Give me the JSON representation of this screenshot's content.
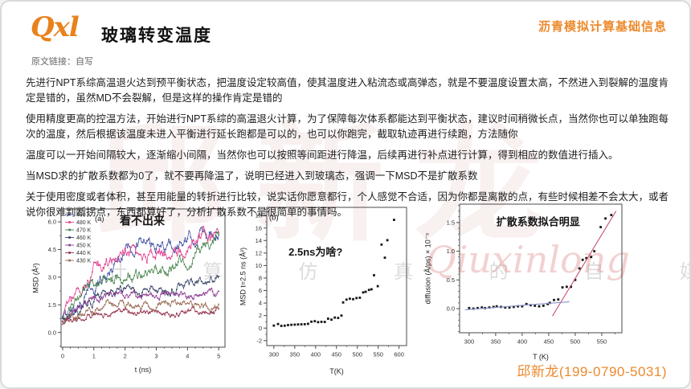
{
  "header": {
    "logo": "Qxl",
    "title": "玻璃转变温度",
    "topright": "沥青模拟计算基础信息",
    "source_line": "原文链接：自写"
  },
  "paragraphs": [
    "先进行NPT系综高温退火达到预平衡状态，把温度设定较高值，使其温度进入粘流态或高弹态，就是不要温度设置太高，不然进入到裂解的温度肯定是错的，虽然MD不会裂解，但是这样的操作肯定是错的",
    "使用精度更高的控温方法，开始进行NPT系综的高温退火计算，为了保障每次体系都能达到平衡状态，建议时间稍微长点，当然你也可以单独跑每次的温度，然后根据该温度未进入平衡进行延长跑都是可以的，也可以你跑完，截取轨迹再进行续跑，方法随你",
    "温度可以一开始间隔较大，逐渐缩小间隔，当然你也可以按照等间距进行降温，后续再进行补点进行计算，得到相应的数值进行插入。",
    "当MSD求的扩散系数都为0了，就不要再降温了，说明已经进入到玻璃态，强调一下MSD不是扩散系数",
    "关于使用密度或者体积，甚至用能量的转折进行比较，说实话你愿意都行，个人感觉不合适，因为你都是离散的点，有些时候相差不会太大，或者说你很难判断拐点，东西都算好了，分析扩散系数不是很简单的事情吗。"
  ],
  "watermark": {
    "big": "邱新龙",
    "row": "计 算 仿 真 的 自 媒 体",
    "script": "Qiuxinlong"
  },
  "footer": {
    "contact": "邱新龙(199-0790-5031)"
  },
  "colors": {
    "accent_orange": "#ED8A2D",
    "logo_orange": "#E8821C",
    "axis": "#4a4a4a",
    "point_black": "#161616",
    "fit_red": "#C8506E",
    "fit_blue": "#8891C8"
  },
  "chart_data": [
    {
      "type": "line",
      "panel_label": "(a)",
      "panel_xy": [
        1.18,
        6.05
      ],
      "annotation": "看不出来",
      "annotation_xy": [
        2.55,
        5.85
      ],
      "annotation_size": 14,
      "xlabel": "t (ns)",
      "ylabel": "MSD (Å²)",
      "xlim": [
        -0.05,
        5.2
      ],
      "ylim": [
        -0.8,
        6.7
      ],
      "xticks": [
        0,
        1,
        2,
        3,
        4,
        5
      ],
      "xtick_labels": [
        "0",
        "1",
        "2",
        "3",
        "4",
        "5"
      ],
      "yticks": [
        0,
        1.5,
        3,
        4.5,
        6
      ],
      "ytick_labels": [
        "0.0",
        "1.5",
        "3.0",
        "4.5",
        "6.0"
      ],
      "legend_position": "top-left",
      "x_anchor": [
        0,
        0.5,
        1,
        1.5,
        2,
        2.5,
        3,
        3.5,
        4,
        4.5,
        5
      ],
      "series": [
        {
          "name": "490 K",
          "color": "#3E4C9E",
          "noise": 0.5,
          "values": [
            0.7,
            1.5,
            2.5,
            3.2,
            4.6,
            4.9,
            4.5,
            4.7,
            4.9,
            5.4,
            5.5
          ]
        },
        {
          "name": "480 K",
          "color": "#E23A8C",
          "noise": 0.55,
          "values": [
            0.7,
            2.2,
            3.3,
            4.0,
            4.6,
            4.1,
            4.4,
            3.9,
            4.6,
            5.1,
            5.1
          ]
        },
        {
          "name": "470 K",
          "color": "#44804A",
          "noise": 0.45,
          "values": [
            0.6,
            1.6,
            2.8,
            3.0,
            2.9,
            3.1,
            3.2,
            3.5,
            4.0,
            4.6,
            5.2
          ]
        },
        {
          "name": "460 K",
          "color": "#333F63",
          "noise": 0.35,
          "values": [
            0.6,
            1.1,
            1.7,
            2.2,
            2.3,
            2.2,
            2.3,
            2.4,
            2.5,
            2.9,
            3.0
          ]
        },
        {
          "name": "450 K",
          "color": "#8C3A90",
          "noise": 0.3,
          "values": [
            0.6,
            1.3,
            1.8,
            2.0,
            1.9,
            2.0,
            2.0,
            2.1,
            2.0,
            2.1,
            2.1
          ]
        },
        {
          "name": "440 K",
          "color": "#93324B",
          "noise": 0.25,
          "values": [
            0.45,
            0.8,
            1.0,
            1.05,
            1.1,
            1.1,
            1.15,
            1.1,
            1.2,
            1.1,
            1.15
          ]
        },
        {
          "name": "430 K",
          "color": "#96684F",
          "noise": 0.3,
          "values": [
            0.5,
            0.9,
            1.3,
            1.7,
            1.4,
            1.5,
            1.55,
            1.5,
            1.55,
            1.45,
            1.4
          ]
        }
      ]
    },
    {
      "type": "scatter",
      "panel_label": "(b)",
      "panel_xy": [
        300,
        17.3
      ],
      "annotation": "2.5ns为啥?",
      "annotation_xy": [
        400,
        11.6
      ],
      "annotation_size": 13,
      "xlabel": "T(K)",
      "ylabel": "MSD t=2.5 ns (Å²)",
      "xlim": [
        283,
        618
      ],
      "ylim": [
        -2.8,
        19.3
      ],
      "xticks": [
        300,
        350,
        400,
        450,
        500,
        550,
        600
      ],
      "xtick_labels": [
        "300",
        "350",
        "400",
        "450",
        "500",
        "550",
        "600"
      ],
      "yticks": [
        -2,
        0,
        2,
        4,
        6,
        8,
        10,
        12,
        14,
        16,
        18
      ],
      "ytick_labels": [
        "-2",
        "0",
        "2",
        "4",
        "6",
        "8",
        "10",
        "12",
        "14",
        "16",
        "18"
      ],
      "points": [
        [
          300,
          0.4
        ],
        [
          310,
          0.65
        ],
        [
          318,
          0.35
        ],
        [
          326,
          0.38
        ],
        [
          334,
          0.48
        ],
        [
          342,
          0.52
        ],
        [
          350,
          0.55
        ],
        [
          358,
          0.58
        ],
        [
          366,
          0.6
        ],
        [
          374,
          0.62
        ],
        [
          382,
          0.68
        ],
        [
          390,
          1.02
        ],
        [
          398,
          1.1
        ],
        [
          406,
          0.95
        ],
        [
          414,
          1.0
        ],
        [
          422,
          0.98
        ],
        [
          430,
          1.5
        ],
        [
          438,
          1.35
        ],
        [
          446,
          1.68
        ],
        [
          454,
          1.62
        ],
        [
          462,
          2.0
        ],
        [
          466,
          4.1
        ],
        [
          474,
          4.55
        ],
        [
          482,
          4.7
        ],
        [
          490,
          4.62
        ],
        [
          498,
          4.8
        ],
        [
          506,
          4.85
        ],
        [
          514,
          5.7
        ],
        [
          520,
          5.8
        ],
        [
          528,
          6.1
        ],
        [
          534,
          6.2
        ],
        [
          540,
          8.45
        ],
        [
          549,
          6.7
        ],
        [
          558,
          13.35
        ],
        [
          566,
          11.25
        ],
        [
          572,
          14.05
        ],
        [
          588,
          17.3
        ]
      ]
    },
    {
      "type": "scatter",
      "panel_label": null,
      "annotation": "扩散系数拟合明显",
      "annotation_xy": [
        430,
        1.45
      ],
      "annotation_size": 13,
      "xlabel": "T (K)",
      "ylabel": "diffusion (Å/ps) × 10⁻⁵",
      "xlim": [
        282,
        588
      ],
      "ylim": [
        -0.42,
        1.82
      ],
      "xticks": [
        300,
        350,
        400,
        450,
        500,
        550
      ],
      "xtick_labels": [
        "300",
        "350",
        "400",
        "450",
        "500",
        "550"
      ],
      "yticks": [
        0,
        0.5,
        1.0,
        1.5
      ],
      "ytick_labels": [
        "0.0",
        "0.5",
        "1.0",
        "1.5"
      ],
      "points": [
        [
          300,
          0.01
        ],
        [
          308,
          0.0
        ],
        [
          316,
          0.01
        ],
        [
          324,
          0.02
        ],
        [
          330,
          0.01
        ],
        [
          338,
          0.02
        ],
        [
          346,
          0.03
        ],
        [
          352,
          0.04
        ],
        [
          360,
          0.03
        ],
        [
          368,
          0.02
        ],
        [
          376,
          0.02
        ],
        [
          384,
          0.03
        ],
        [
          392,
          0.04
        ],
        [
          400,
          0.04
        ],
        [
          408,
          0.08
        ],
        [
          416,
          0.06
        ],
        [
          424,
          0.05
        ],
        [
          432,
          0.04
        ],
        [
          440,
          0.05
        ],
        [
          448,
          0.08
        ],
        [
          452,
          0.1
        ],
        [
          460,
          0.15
        ],
        [
          468,
          0.16
        ],
        [
          476,
          0.37
        ],
        [
          484,
          0.38
        ],
        [
          492,
          0.38
        ],
        [
          500,
          0.5
        ],
        [
          508,
          0.7
        ],
        [
          514,
          0.85
        ],
        [
          521,
          0.88
        ],
        [
          530,
          0.9
        ],
        [
          536,
          1.0
        ],
        [
          548,
          1.42
        ],
        [
          557,
          1.57
        ],
        [
          568,
          1.63
        ]
      ],
      "fit_lines": [
        {
          "color": "#C8506E",
          "x1": 457,
          "y1": -0.13,
          "x2": 577,
          "y2": 1.7
        },
        {
          "color": "#8891C8",
          "x1": 292,
          "y1": -0.02,
          "x2": 489,
          "y2": 0.12
        }
      ]
    }
  ]
}
